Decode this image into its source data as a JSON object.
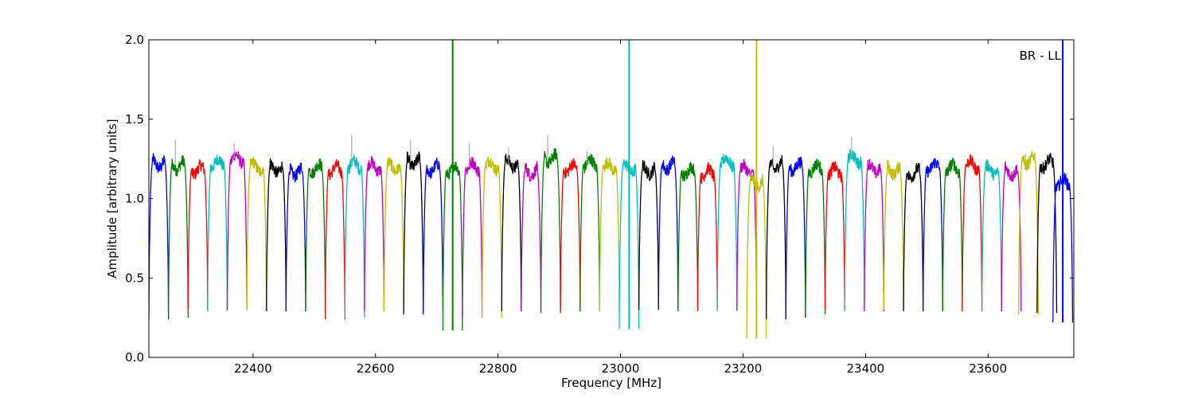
{
  "chart_data": {
    "type": "line",
    "title": "",
    "annotation": "BR - LL",
    "xlabel": "Frequency [MHz]",
    "ylabel": "Amplitude [arbitrary units]",
    "xlim": [
      22230,
      23740
    ],
    "ylim": [
      0.0,
      2.0
    ],
    "xticks": [
      22400,
      22600,
      22800,
      23000,
      23200,
      23400,
      23600
    ],
    "yticks": [
      0.0,
      0.5,
      1.0,
      1.5,
      2.0
    ],
    "xtick_labels": [
      "22400",
      "22600",
      "22800",
      "23000",
      "23200",
      "23400",
      "23600"
    ],
    "ytick_labels": [
      "0.0",
      "0.5",
      "1.0",
      "1.5",
      "2.0"
    ],
    "grid": false,
    "colors": [
      "#0000ff",
      "#008000",
      "#ff0000",
      "#00bfbf",
      "#bf00bf",
      "#bfbf00",
      "#000000"
    ],
    "band_width_mhz": 32,
    "bands": [
      {
        "start": 22230,
        "level": 1.22,
        "color": "#0000ff",
        "min": 0.24,
        "spike": null
      },
      {
        "start": 22262,
        "level": 1.21,
        "color": "#008000",
        "min": 0.25,
        "spike": 1.37
      },
      {
        "start": 22294,
        "level": 1.18,
        "color": "#ff0000",
        "min": 0.3,
        "spike": null
      },
      {
        "start": 22326,
        "level": 1.22,
        "color": "#00bfbf",
        "min": 0.29,
        "spike": null
      },
      {
        "start": 22358,
        "level": 1.25,
        "color": "#bf00bf",
        "min": 0.3,
        "spike": 1.35
      },
      {
        "start": 22390,
        "level": 1.2,
        "color": "#bfbf00",
        "min": 0.3,
        "spike": null
      },
      {
        "start": 22422,
        "level": 1.19,
        "color": "#000000",
        "min": 0.29,
        "spike": null
      },
      {
        "start": 22454,
        "level": 1.17,
        "color": "#0000ff",
        "min": 0.29,
        "spike": null
      },
      {
        "start": 22486,
        "level": 1.19,
        "color": "#008000",
        "min": 0.29,
        "spike": null
      },
      {
        "start": 22518,
        "level": 1.18,
        "color": "#ff0000",
        "min": 0.24,
        "spike": null
      },
      {
        "start": 22550,
        "level": 1.21,
        "color": "#00bfbf",
        "min": 0.25,
        "spike": 1.4
      },
      {
        "start": 22582,
        "level": 1.2,
        "color": "#bf00bf",
        "min": 0.29,
        "spike": null
      },
      {
        "start": 22614,
        "level": 1.2,
        "color": "#bfbf00",
        "min": 0.29,
        "spike": null
      },
      {
        "start": 22646,
        "level": 1.23,
        "color": "#000000",
        "min": 0.27,
        "spike": 1.37
      },
      {
        "start": 22678,
        "level": 1.19,
        "color": "#0000ff",
        "min": 0.29,
        "spike": null
      },
      {
        "start": 22710,
        "level": 1.18,
        "color": "#008000",
        "min": 0.17,
        "spike": 2.0
      },
      {
        "start": 22742,
        "level": 1.2,
        "color": "#bf00bf",
        "min": 0.25,
        "spike": 1.35
      },
      {
        "start": 22774,
        "level": 1.21,
        "color": "#bfbf00",
        "min": 0.25,
        "spike": null
      },
      {
        "start": 22806,
        "level": 1.22,
        "color": "#000000",
        "min": 0.29,
        "spike": 1.32
      },
      {
        "start": 22838,
        "level": 1.17,
        "color": "#bf00bf",
        "min": 0.29,
        "spike": null
      },
      {
        "start": 22870,
        "level": 1.25,
        "color": "#008000",
        "min": 0.28,
        "spike": 1.4
      },
      {
        "start": 22902,
        "level": 1.19,
        "color": "#ff0000",
        "min": 0.29,
        "spike": null
      },
      {
        "start": 22934,
        "level": 1.22,
        "color": "#008000",
        "min": 0.29,
        "spike": 1.3
      },
      {
        "start": 22966,
        "level": 1.2,
        "color": "#bfbf00",
        "min": 0.29,
        "spike": null
      },
      {
        "start": 22998,
        "level": 1.19,
        "color": "#00bfbf",
        "min": 0.18,
        "spike": 2.0
      },
      {
        "start": 23030,
        "level": 1.18,
        "color": "#000000",
        "min": 0.3,
        "spike": null
      },
      {
        "start": 23062,
        "level": 1.21,
        "color": "#0000ff",
        "min": 0.3,
        "spike": null
      },
      {
        "start": 23094,
        "level": 1.17,
        "color": "#008000",
        "min": 0.29,
        "spike": null
      },
      {
        "start": 23126,
        "level": 1.16,
        "color": "#ff0000",
        "min": 0.3,
        "spike": null
      },
      {
        "start": 23158,
        "level": 1.23,
        "color": "#00bfbf",
        "min": 0.29,
        "spike": null
      },
      {
        "start": 23190,
        "level": 1.18,
        "color": "#bf00bf",
        "min": 0.3,
        "spike": null
      },
      {
        "start": 23206,
        "level": 1.1,
        "color": "#bfbf00",
        "min": 0.12,
        "spike": 2.0
      },
      {
        "start": 23238,
        "level": 1.21,
        "color": "#000000",
        "min": 0.24,
        "spike": 1.33
      },
      {
        "start": 23270,
        "level": 1.2,
        "color": "#0000ff",
        "min": 0.25,
        "spike": null
      },
      {
        "start": 23302,
        "level": 1.19,
        "color": "#008000",
        "min": 0.27,
        "spike": null
      },
      {
        "start": 23334,
        "level": 1.17,
        "color": "#ff0000",
        "min": 0.3,
        "spike": null
      },
      {
        "start": 23366,
        "level": 1.25,
        "color": "#00bfbf",
        "min": 0.29,
        "spike": 1.39
      },
      {
        "start": 23398,
        "level": 1.19,
        "color": "#bf00bf",
        "min": 0.29,
        "spike": null
      },
      {
        "start": 23430,
        "level": 1.18,
        "color": "#bfbf00",
        "min": 0.3,
        "spike": null
      },
      {
        "start": 23462,
        "level": 1.16,
        "color": "#000000",
        "min": 0.29,
        "spike": null
      },
      {
        "start": 23494,
        "level": 1.2,
        "color": "#0000ff",
        "min": 0.29,
        "spike": null
      },
      {
        "start": 23526,
        "level": 1.19,
        "color": "#008000",
        "min": 0.29,
        "spike": null
      },
      {
        "start": 23558,
        "level": 1.21,
        "color": "#ff0000",
        "min": 0.29,
        "spike": null
      },
      {
        "start": 23590,
        "level": 1.18,
        "color": "#00bfbf",
        "min": 0.29,
        "spike": null
      },
      {
        "start": 23622,
        "level": 1.17,
        "color": "#bf00bf",
        "min": 0.29,
        "spike": null
      },
      {
        "start": 23650,
        "level": 1.24,
        "color": "#bfbf00",
        "min": 0.27,
        "spike": 1.28
      },
      {
        "start": 23680,
        "level": 1.22,
        "color": "#000000",
        "min": 0.28,
        "spike": null
      },
      {
        "start": 23706,
        "level": 1.1,
        "color": "#0000ff",
        "min": 0.22,
        "spike": 2.0
      }
    ]
  }
}
